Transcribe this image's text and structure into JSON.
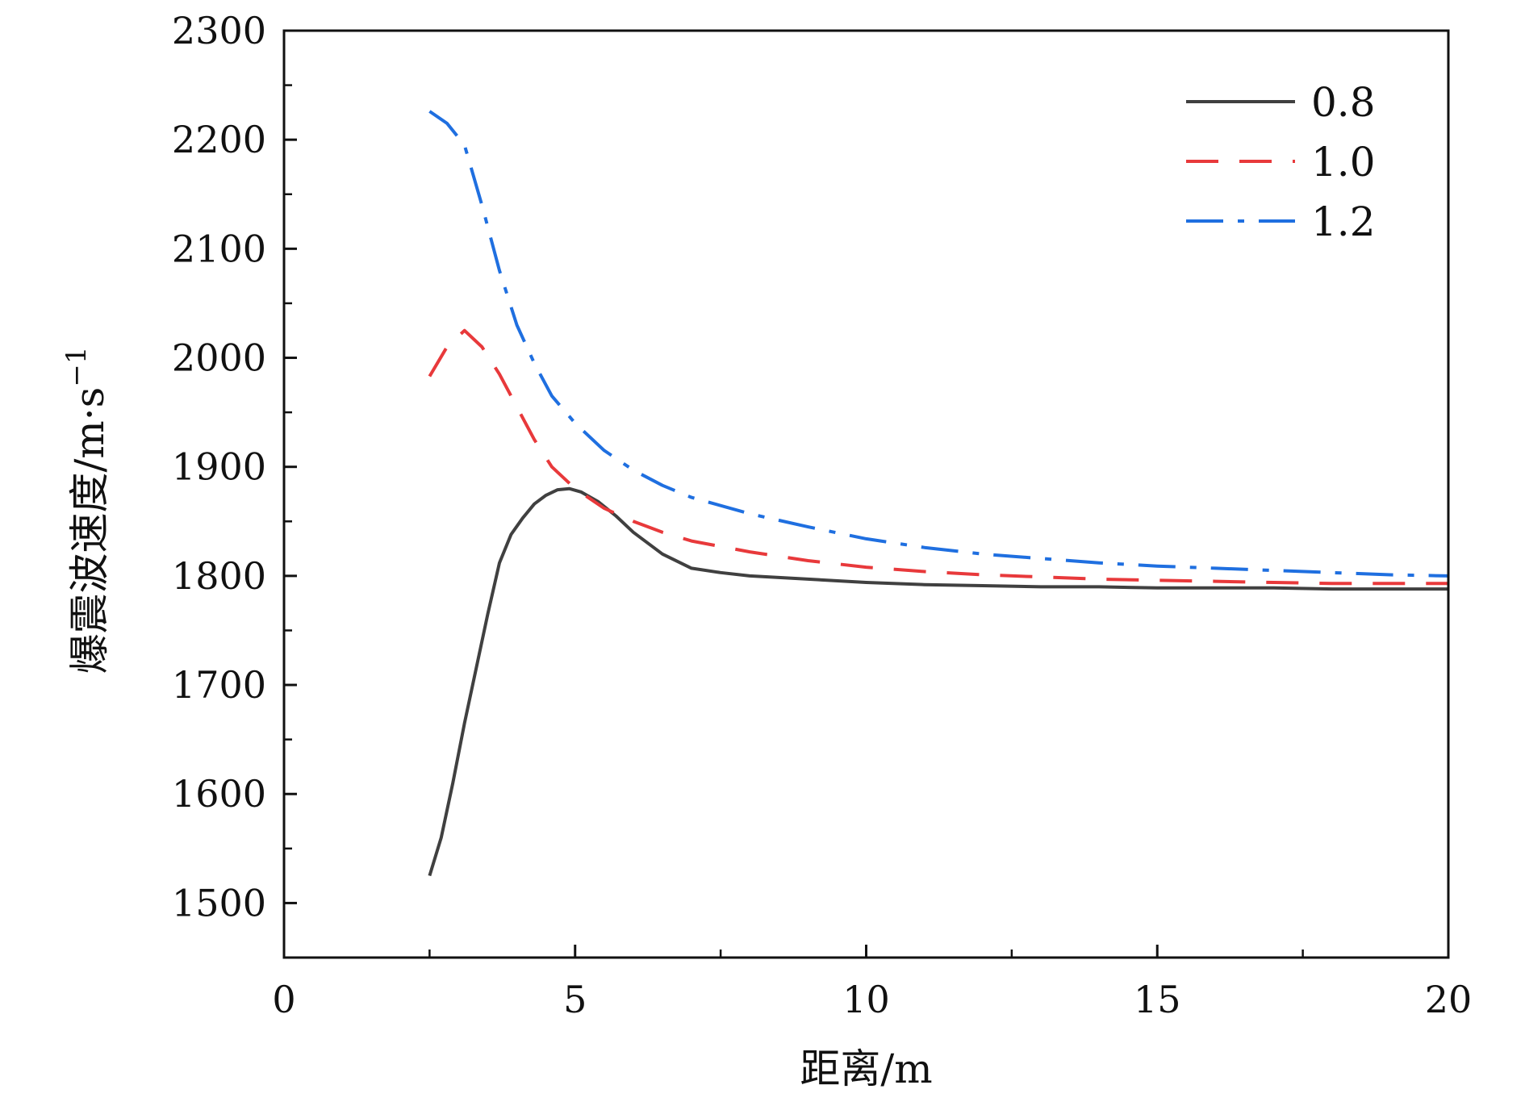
{
  "chart_data": {
    "type": "line",
    "xlabel": "距离/m",
    "ylabel": "爆震波速度/m·s",
    "ylabel_sup": "−1",
    "xlim": [
      0,
      20
    ],
    "ylim": [
      1450,
      2300
    ],
    "xticks": [
      0,
      5,
      10,
      15,
      20
    ],
    "yticks": [
      1500,
      1600,
      1700,
      1800,
      1900,
      2000,
      2100,
      2200,
      2300
    ],
    "grid": false,
    "legend_position": "top-right",
    "series": [
      {
        "name": "0.8",
        "color": "#404040",
        "style": "solid",
        "x": [
          2.5,
          2.7,
          2.9,
          3.1,
          3.3,
          3.5,
          3.7,
          3.9,
          4.1,
          4.3,
          4.5,
          4.7,
          4.9,
          5.1,
          5.4,
          5.7,
          6.0,
          6.5,
          7.0,
          7.5,
          8.0,
          9.0,
          10.0,
          11.0,
          12.0,
          13.0,
          14.0,
          15.0,
          16.0,
          17.0,
          18.0,
          19.0,
          20.0
        ],
        "y": [
          1525,
          1560,
          1610,
          1665,
          1715,
          1765,
          1812,
          1838,
          1853,
          1866,
          1874,
          1879,
          1880,
          1877,
          1868,
          1855,
          1840,
          1820,
          1807,
          1803,
          1800,
          1797,
          1794,
          1792,
          1791,
          1790,
          1790,
          1789,
          1789,
          1789,
          1788,
          1788,
          1788
        ]
      },
      {
        "name": "1.0",
        "color": "#e8393b",
        "style": "dashed",
        "x": [
          2.5,
          2.8,
          3.1,
          3.4,
          3.7,
          4.0,
          4.3,
          4.6,
          5.0,
          5.5,
          6.0,
          6.5,
          7.0,
          8.0,
          9.0,
          10.0,
          11.0,
          12.0,
          13.0,
          14.0,
          15.0,
          16.0,
          17.0,
          18.0,
          19.0,
          20.0
        ],
        "y": [
          1983,
          2010,
          2025,
          2010,
          1985,
          1955,
          1925,
          1900,
          1880,
          1862,
          1850,
          1840,
          1832,
          1822,
          1814,
          1808,
          1804,
          1801,
          1799,
          1797,
          1796,
          1795,
          1794,
          1793,
          1793,
          1793
        ]
      },
      {
        "name": "1.2",
        "color": "#1f6fe0",
        "style": "dashdot",
        "x": [
          2.5,
          2.8,
          3.1,
          3.4,
          3.7,
          4.0,
          4.3,
          4.6,
          5.0,
          5.5,
          6.0,
          6.5,
          7.0,
          8.0,
          9.0,
          10.0,
          11.0,
          12.0,
          13.0,
          14.0,
          15.0,
          16.0,
          17.0,
          18.0,
          19.0,
          20.0
        ],
        "y": [
          2226,
          2215,
          2195,
          2140,
          2080,
          2030,
          1995,
          1965,
          1940,
          1915,
          1897,
          1883,
          1872,
          1857,
          1845,
          1834,
          1826,
          1820,
          1816,
          1812,
          1809,
          1807,
          1805,
          1803,
          1801,
          1800
        ]
      }
    ]
  }
}
